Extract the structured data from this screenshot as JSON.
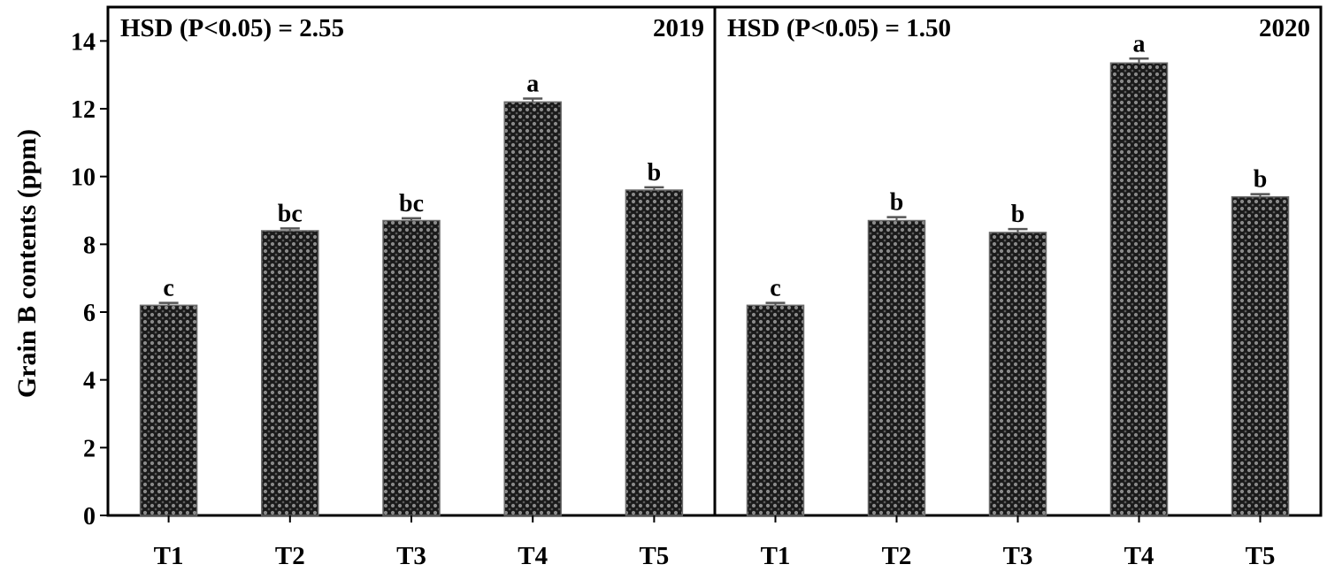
{
  "y_axis_label": "Grain B contents (ppm)",
  "chart_data": [
    {
      "type": "bar",
      "panel_label": "2019",
      "annotation": "HSD (P<0.05) = 2.55",
      "categories": [
        "T1",
        "T2",
        "T3",
        "T4",
        "T5"
      ],
      "values": [
        6.2,
        8.4,
        8.7,
        12.2,
        9.6
      ],
      "errors": [
        0.07,
        0.07,
        0.07,
        0.1,
        0.08
      ],
      "letters": [
        "c",
        "bc",
        "bc",
        "a",
        "b"
      ],
      "ylim": [
        0,
        15
      ],
      "yticks": [
        0,
        2,
        4,
        6,
        8,
        10,
        12,
        14
      ],
      "xlabel": "",
      "ylabel": "Grain B contents (ppm)"
    },
    {
      "type": "bar",
      "panel_label": "2020",
      "annotation": "HSD (P<0.05) = 1.50",
      "categories": [
        "T1",
        "T2",
        "T3",
        "T4",
        "T5"
      ],
      "values": [
        6.2,
        8.7,
        8.35,
        13.35,
        9.4
      ],
      "errors": [
        0.07,
        0.1,
        0.1,
        0.13,
        0.08
      ],
      "letters": [
        "c",
        "b",
        "b",
        "a",
        "b"
      ],
      "ylim": [
        0,
        15
      ],
      "yticks": [
        0,
        2,
        4,
        6,
        8,
        10,
        12,
        14
      ],
      "xlabel": "",
      "ylabel": ""
    }
  ]
}
